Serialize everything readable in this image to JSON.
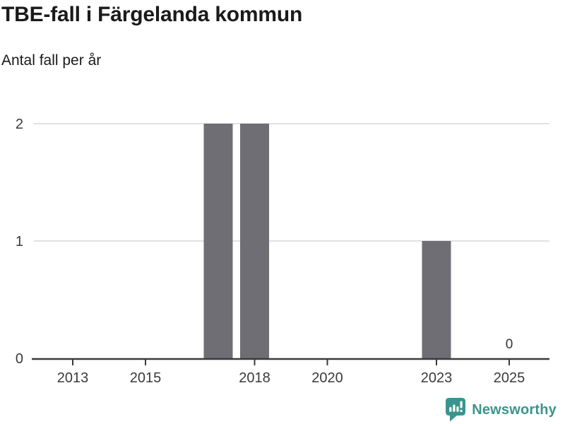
{
  "chart_data": {
    "type": "bar",
    "title": "TBE-fall i Färgelanda kommun",
    "subtitle": "Antal fall per år",
    "categories": [
      2012,
      2013,
      2014,
      2015,
      2016,
      2017,
      2018,
      2019,
      2020,
      2021,
      2022,
      2023,
      2024,
      2025
    ],
    "values": [
      0,
      0,
      0,
      0,
      0,
      2,
      2,
      0,
      0,
      0,
      0,
      1,
      0,
      0
    ],
    "x_tick_labels": [
      "2013",
      "2015",
      "2018",
      "2020",
      "2023",
      "2025"
    ],
    "x_tick_years": [
      2013,
      2015,
      2018,
      2020,
      2023,
      2025
    ],
    "y_tick_labels": [
      "0",
      "1",
      "2"
    ],
    "y_tick_values": [
      0,
      1,
      2
    ],
    "ylim": [
      0,
      2.1
    ],
    "grid": true,
    "legend": false,
    "xlabel": "",
    "ylabel": "",
    "last_point_label": "0",
    "last_point_year": 2025,
    "bar_color": "#6e6e74",
    "grid_color": "#e2e2e4",
    "axis_color": "#3a3a3a",
    "tick_label_color": "#3a3a3a",
    "data_label_color": "#333333"
  },
  "branding": {
    "logo_text": "Newsworthy",
    "brand_color": "#3b948e"
  }
}
